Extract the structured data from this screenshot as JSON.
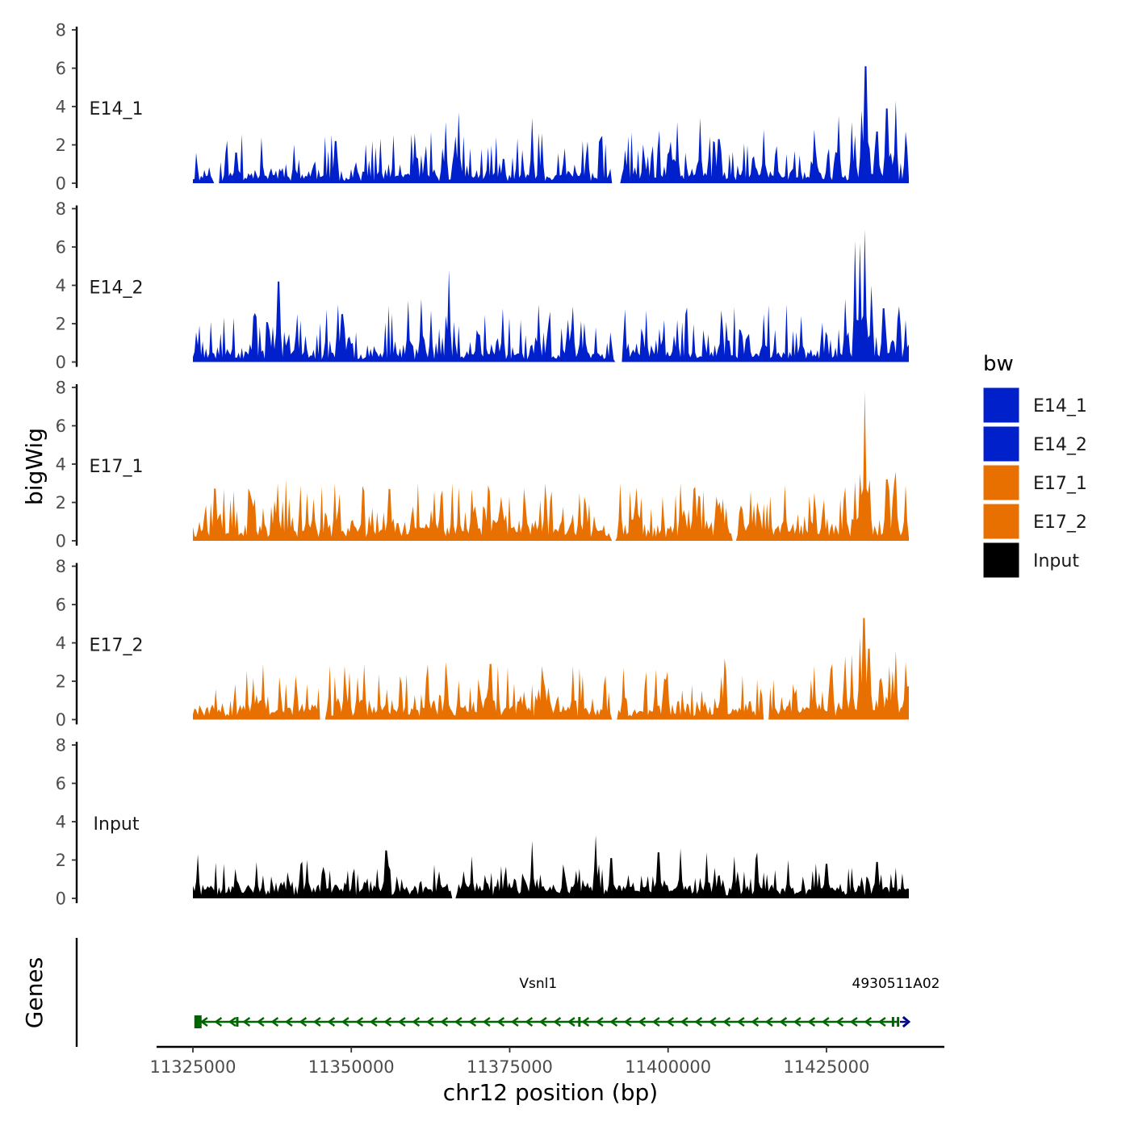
{
  "chart_data": {
    "type": "area",
    "chromosome": "chr12",
    "x_axis": {
      "label": "chr12 position (bp)",
      "range": [
        11325000,
        11438000
      ],
      "ticks": [
        11325000,
        11350000,
        11375000,
        11400000,
        11425000
      ],
      "tick_labels": [
        "11325000",
        "11350000",
        "11375000",
        "11400000",
        "11425000"
      ]
    },
    "y_axis": {
      "label": "bigWig",
      "range": [
        0,
        8
      ],
      "ticks": [
        0,
        2,
        4,
        6,
        8
      ],
      "tick_labels": [
        "0",
        "2",
        "4",
        "6",
        "8"
      ]
    },
    "genes_panel_label": "Genes",
    "legend": {
      "title": "bw",
      "entries": [
        {
          "name": "E14_1",
          "color": "#0020CC"
        },
        {
          "name": "E14_2",
          "color": "#0020CC"
        },
        {
          "name": "E17_1",
          "color": "#E87000"
        },
        {
          "name": "E17_2",
          "color": "#E87000"
        },
        {
          "name": "Input",
          "color": "#000000"
        }
      ]
    },
    "series": [
      {
        "name": "E14_1",
        "color": "#0020CC",
        "seed": 11,
        "base": 0.35,
        "amp": 1.5,
        "gaps": [
          [
            11328200,
            11329200
          ],
          [
            11391000,
            11392500
          ]
        ],
        "peaks": [
          [
            11331800,
            1.6
          ],
          [
            11341000,
            2.0
          ],
          [
            11347500,
            2.2
          ],
          [
            11360000,
            2.6
          ],
          [
            11365000,
            3.2
          ],
          [
            11367000,
            3.7
          ],
          [
            11378500,
            3.4
          ],
          [
            11380000,
            2.6
          ],
          [
            11391500,
            1.9
          ],
          [
            11396000,
            1.6
          ],
          [
            11401500,
            3.2
          ],
          [
            11405000,
            3.4
          ],
          [
            11408000,
            2.3
          ],
          [
            11415000,
            2.8
          ],
          [
            11423000,
            2.8
          ],
          [
            11427000,
            3.5
          ],
          [
            11429000,
            3.2
          ],
          [
            11430500,
            3.8
          ],
          [
            11431200,
            6.1
          ],
          [
            11433000,
            2.7
          ],
          [
            11434500,
            3.9
          ],
          [
            11436000,
            4.3
          ],
          [
            11437500,
            2.7
          ]
        ]
      },
      {
        "name": "E14_2",
        "color": "#0020CC",
        "seed": 23,
        "base": 0.4,
        "amp": 1.6,
        "gaps": [
          [
            11391500,
            11392800
          ]
        ],
        "peaks": [
          [
            11338500,
            4.2
          ],
          [
            11348000,
            3.0
          ],
          [
            11359000,
            3.2
          ],
          [
            11361000,
            3.3
          ],
          [
            11365500,
            4.8
          ],
          [
            11374000,
            2.8
          ],
          [
            11379500,
            3.0
          ],
          [
            11385000,
            2.9
          ],
          [
            11401500,
            2.2
          ],
          [
            11408500,
            2.7
          ],
          [
            11415000,
            2.5
          ],
          [
            11421000,
            2.4
          ],
          [
            11428000,
            3.3
          ],
          [
            11429500,
            6.3
          ],
          [
            11430200,
            6.2
          ],
          [
            11431000,
            6.9
          ],
          [
            11432000,
            4.0
          ],
          [
            11434000,
            2.8
          ],
          [
            11436500,
            2.9
          ],
          [
            11437500,
            2.2
          ]
        ]
      },
      {
        "name": "E17_1",
        "color": "#E87000",
        "seed": 37,
        "base": 0.55,
        "amp": 1.6,
        "gaps": [
          [
            11391000,
            11391800
          ],
          [
            11410000,
            11410800
          ]
        ],
        "peaks": [
          [
            11338300,
            3.0
          ],
          [
            11343000,
            2.5
          ],
          [
            11347300,
            3.0
          ],
          [
            11356000,
            2.7
          ],
          [
            11363000,
            2.6
          ],
          [
            11369000,
            2.7
          ],
          [
            11371500,
            2.9
          ],
          [
            11380500,
            3.0
          ],
          [
            11386000,
            2.5
          ],
          [
            11392500,
            3.0
          ],
          [
            11402000,
            3.0
          ],
          [
            11404000,
            2.7
          ],
          [
            11413000,
            2.6
          ],
          [
            11418500,
            2.9
          ],
          [
            11423000,
            2.5
          ],
          [
            11428000,
            2.8
          ],
          [
            11429500,
            3.1
          ],
          [
            11430300,
            3.5
          ],
          [
            11431000,
            7.8
          ],
          [
            11431800,
            3.2
          ],
          [
            11434500,
            3.2
          ],
          [
            11436000,
            3.6
          ],
          [
            11437500,
            2.9
          ]
        ]
      },
      {
        "name": "E17_2",
        "color": "#E87000",
        "seed": 53,
        "base": 0.5,
        "amp": 1.5,
        "gaps": [
          [
            11345000,
            11346000
          ],
          [
            11391000,
            11392000
          ],
          [
            11415000,
            11416000
          ]
        ],
        "peaks": [
          [
            11336000,
            2.9
          ],
          [
            11349000,
            2.8
          ],
          [
            11352000,
            2.9
          ],
          [
            11362000,
            2.9
          ],
          [
            11365000,
            3.0
          ],
          [
            11372000,
            2.9
          ],
          [
            11380000,
            2.8
          ],
          [
            11385000,
            2.8
          ],
          [
            11393000,
            2.7
          ],
          [
            11400000,
            2.5
          ],
          [
            11409000,
            3.2
          ],
          [
            11415000,
            3.0
          ],
          [
            11423000,
            2.8
          ],
          [
            11426000,
            2.9
          ],
          [
            11428000,
            3.3
          ],
          [
            11429000,
            3.4
          ],
          [
            11430200,
            4.3
          ],
          [
            11430900,
            5.3
          ],
          [
            11431700,
            3.7
          ],
          [
            11435000,
            2.8
          ],
          [
            11436000,
            3.6
          ],
          [
            11437500,
            3.0
          ]
        ]
      },
      {
        "name": "Input",
        "color": "#000000",
        "seed": 71,
        "base": 0.5,
        "amp": 0.9,
        "gaps": [
          [
            11365800,
            11366600
          ]
        ],
        "peaks": [
          [
            11325700,
            2.3
          ],
          [
            11335000,
            1.9
          ],
          [
            11343000,
            2.0
          ],
          [
            11355500,
            2.5
          ],
          [
            11369000,
            2.2
          ],
          [
            11378500,
            3.0
          ],
          [
            11388500,
            3.3
          ],
          [
            11391000,
            2.1
          ],
          [
            11398500,
            2.4
          ],
          [
            11402000,
            2.6
          ],
          [
            11406000,
            2.4
          ],
          [
            11410500,
            2.2
          ],
          [
            11414000,
            2.4
          ],
          [
            11419000,
            2.0
          ],
          [
            11425000,
            1.8
          ],
          [
            11433000,
            1.9
          ],
          [
            11437000,
            1.3
          ]
        ]
      }
    ],
    "genes": [
      {
        "name": "Vsnl1",
        "start": 11325500,
        "end": 11436400,
        "strand": "-",
        "color": "#006400",
        "label_position": 11379500,
        "exons": [
          11325800,
          11332000,
          11386000,
          11435500,
          11436300
        ]
      },
      {
        "name": "4930511A02",
        "start": 11436600,
        "end": 11437600,
        "strand": "+",
        "color": "#00008B",
        "label_position": 11436500,
        "exons": []
      }
    ]
  }
}
